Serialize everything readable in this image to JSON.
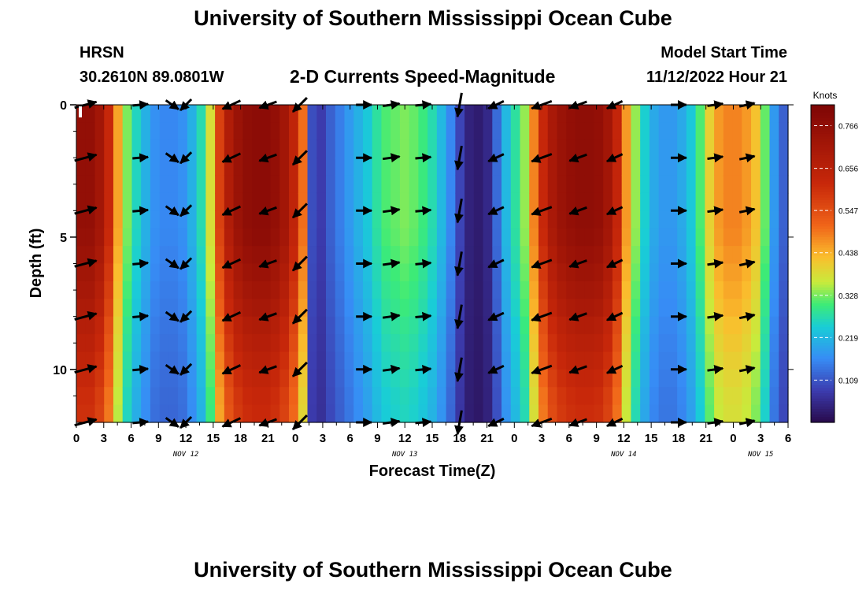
{
  "header": {
    "title": "University of Southern Mississippi Ocean Cube",
    "station": "HRSN",
    "coords": "30.2610N  89.0801W",
    "subtitle": "2-D Currents Speed-Magnitude",
    "model_start_label": "Model Start Time",
    "model_start_value": "11/12/2022 Hour 21"
  },
  "footer": {
    "title": "University of Southern Mississippi Ocean Cube"
  },
  "chart_data": {
    "type": "heatmap",
    "title": "2-D Currents Speed-Magnitude",
    "xlabel": "Forecast Time(Z)",
    "ylabel": "Depth (ft)",
    "x_tick_labels": [
      "0",
      "3",
      "6",
      "9",
      "12",
      "15",
      "18",
      "21",
      "0",
      "3",
      "6",
      "9",
      "12",
      "15",
      "18",
      "21",
      "0",
      "3",
      "6",
      "9",
      "12",
      "15",
      "18",
      "21",
      "0",
      "3",
      "6"
    ],
    "date_labels": [
      "NOV 12",
      "NOV 13",
      "NOV 14",
      "NOV 15"
    ],
    "y_ticks": [
      0,
      5,
      10
    ],
    "ylim": [
      0,
      12
    ],
    "y_inverted": true,
    "colorbar": {
      "unit": "Knots",
      "ticks": [
        0.109,
        0.219,
        0.328,
        0.438,
        0.547,
        0.656,
        0.766
      ],
      "range": [
        0.0,
        0.82
      ]
    },
    "speed_knots_by_column": [
      0.76,
      0.76,
      0.72,
      0.62,
      0.45,
      0.33,
      0.26,
      0.21,
      0.17,
      0.16,
      0.16,
      0.17,
      0.21,
      0.27,
      0.38,
      0.57,
      0.68,
      0.74,
      0.77,
      0.78,
      0.78,
      0.76,
      0.72,
      0.64,
      0.5,
      0.1,
      0.08,
      0.12,
      0.15,
      0.18,
      0.21,
      0.24,
      0.28,
      0.31,
      0.32,
      0.33,
      0.32,
      0.3,
      0.27,
      0.22,
      0.16,
      0.09,
      0.04,
      0.03,
      0.05,
      0.13,
      0.22,
      0.28,
      0.34,
      0.48,
      0.62,
      0.7,
      0.74,
      0.76,
      0.77,
      0.77,
      0.76,
      0.72,
      0.63,
      0.46,
      0.34,
      0.25,
      0.2,
      0.18,
      0.18,
      0.2,
      0.24,
      0.31,
      0.4,
      0.46,
      0.48,
      0.48,
      0.46,
      0.42,
      0.32,
      0.18,
      0.12
    ],
    "depth_factor_by_row": [
      1.0,
      1.0,
      1.0,
      1.0,
      1.0,
      1.0,
      1.0,
      0.99,
      0.97,
      0.95,
      0.93,
      0.91,
      0.88,
      0.86,
      0.84,
      0.82,
      0.8,
      0.79
    ],
    "vectors": {
      "depths_ft": [
        0,
        2,
        4,
        6,
        8,
        10,
        12
      ],
      "columns": [
        {
          "hour": 1,
          "dir_deg": 15,
          "len": 0.8
        },
        {
          "hour": 7,
          "dir_deg": 5,
          "len": 0.55
        },
        {
          "hour": 10.5,
          "dir_deg": -35,
          "len": 0.55
        },
        {
          "hour": 12,
          "dir_deg": 225,
          "len": 0.55
        },
        {
          "hour": 17,
          "dir_deg": 205,
          "len": 0.7
        },
        {
          "hour": 21,
          "dir_deg": 200,
          "len": 0.65
        },
        {
          "hour": 24.5,
          "dir_deg": 225,
          "len": 0.7
        },
        {
          "hour": 31.5,
          "dir_deg": 0,
          "len": 0.55
        },
        {
          "hour": 34.5,
          "dir_deg": 8,
          "len": 0.6
        },
        {
          "hour": 38,
          "dir_deg": 5,
          "len": 0.55
        },
        {
          "hour": 42,
          "dir_deg": 260,
          "len": 0.85
        },
        {
          "hour": 46,
          "dir_deg": 205,
          "len": 0.6
        },
        {
          "hour": 51,
          "dir_deg": 200,
          "len": 0.75
        },
        {
          "hour": 55,
          "dir_deg": 200,
          "len": 0.65
        },
        {
          "hour": 59,
          "dir_deg": 205,
          "len": 0.6
        },
        {
          "hour": 66,
          "dir_deg": 0,
          "len": 0.55
        },
        {
          "hour": 70,
          "dir_deg": 8,
          "len": 0.55
        },
        {
          "hour": 73.5,
          "dir_deg": 12,
          "len": 0.55
        }
      ]
    }
  }
}
